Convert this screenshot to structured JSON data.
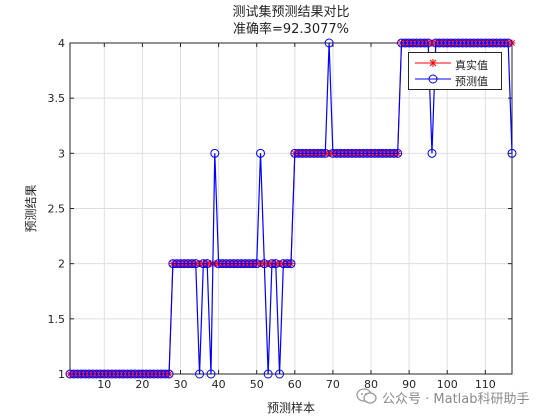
{
  "chart_data": {
    "type": "line",
    "title": "测试集预测结果对比",
    "subtitle": "准确率=92.3077%",
    "xlabel": "预测样本",
    "ylabel": "预测结果",
    "xlim": [
      1,
      117
    ],
    "ylim": [
      1,
      4
    ],
    "x_ticks": [
      10,
      20,
      30,
      40,
      50,
      60,
      70,
      80,
      90,
      100,
      110
    ],
    "y_ticks": [
      1,
      1.5,
      2,
      2.5,
      3,
      3.5,
      4
    ],
    "y_tick_labels": [
      "1",
      "1.5",
      "2",
      "2.5",
      "3",
      "3.5",
      "4"
    ],
    "grid": true,
    "legend_position": "top-right",
    "x": [
      1,
      2,
      3,
      4,
      5,
      6,
      7,
      8,
      9,
      10,
      11,
      12,
      13,
      14,
      15,
      16,
      17,
      18,
      19,
      20,
      21,
      22,
      23,
      24,
      25,
      26,
      27,
      28,
      29,
      30,
      31,
      32,
      33,
      34,
      35,
      36,
      37,
      38,
      39,
      40,
      41,
      42,
      43,
      44,
      45,
      46,
      47,
      48,
      49,
      50,
      51,
      52,
      53,
      54,
      55,
      56,
      57,
      58,
      59,
      60,
      61,
      62,
      63,
      64,
      65,
      66,
      67,
      68,
      69,
      70,
      71,
      72,
      73,
      74,
      75,
      76,
      77,
      78,
      79,
      80,
      81,
      82,
      83,
      84,
      85,
      86,
      87,
      88,
      89,
      90,
      91,
      92,
      93,
      94,
      95,
      96,
      97,
      98,
      99,
      100,
      101,
      102,
      103,
      104,
      105,
      106,
      107,
      108,
      109,
      110,
      111,
      112,
      113,
      114,
      115,
      116,
      117
    ],
    "series": [
      {
        "name": "真实值",
        "color": "#ff0000",
        "marker": "asterisk",
        "values": [
          1,
          1,
          1,
          1,
          1,
          1,
          1,
          1,
          1,
          1,
          1,
          1,
          1,
          1,
          1,
          1,
          1,
          1,
          1,
          1,
          1,
          1,
          1,
          1,
          1,
          1,
          1,
          2,
          2,
          2,
          2,
          2,
          2,
          2,
          2,
          2,
          2,
          2,
          2,
          2,
          2,
          2,
          2,
          2,
          2,
          2,
          2,
          2,
          2,
          2,
          2,
          2,
          2,
          2,
          2,
          2,
          2,
          2,
          2,
          3,
          3,
          3,
          3,
          3,
          3,
          3,
          3,
          3,
          3,
          3,
          3,
          3,
          3,
          3,
          3,
          3,
          3,
          3,
          3,
          3,
          3,
          3,
          3,
          3,
          3,
          3,
          3,
          4,
          4,
          4,
          4,
          4,
          4,
          4,
          4,
          4,
          4,
          4,
          4,
          4,
          4,
          4,
          4,
          4,
          4,
          4,
          4,
          4,
          4,
          4,
          4,
          4,
          4,
          4,
          4,
          4,
          4
        ]
      },
      {
        "name": "预测值",
        "color": "#0000ff",
        "marker": "circle",
        "values": [
          1,
          1,
          1,
          1,
          1,
          1,
          1,
          1,
          1,
          1,
          1,
          1,
          1,
          1,
          1,
          1,
          1,
          1,
          1,
          1,
          1,
          1,
          1,
          1,
          1,
          1,
          1,
          2,
          2,
          2,
          2,
          2,
          2,
          2,
          1,
          2,
          2,
          1,
          3,
          2,
          2,
          2,
          2,
          2,
          2,
          2,
          2,
          2,
          2,
          2,
          3,
          2,
          1,
          2,
          2,
          1,
          2,
          2,
          2,
          3,
          3,
          3,
          3,
          3,
          3,
          3,
          3,
          3,
          4,
          3,
          3,
          3,
          3,
          3,
          3,
          3,
          3,
          3,
          3,
          3,
          3,
          3,
          3,
          3,
          3,
          3,
          3,
          4,
          4,
          4,
          4,
          4,
          4,
          4,
          4,
          3,
          4,
          4,
          4,
          4,
          4,
          4,
          4,
          4,
          4,
          4,
          4,
          4,
          4,
          4,
          4,
          4,
          4,
          4,
          4,
          4,
          3
        ]
      }
    ]
  },
  "watermark": {
    "icon": "wechat-icon",
    "text": "公众号 · Matlab科研助手"
  }
}
